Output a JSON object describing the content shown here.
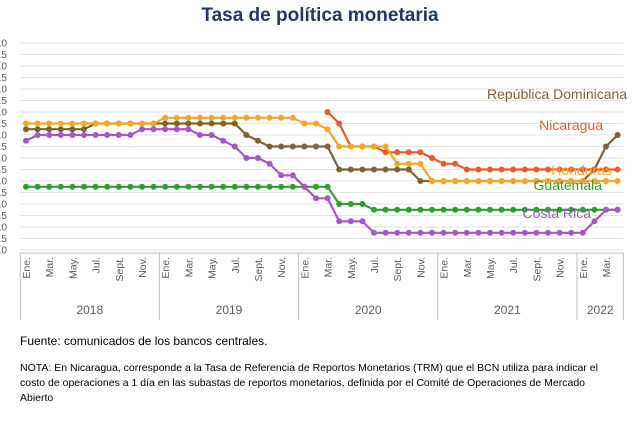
{
  "chart_data": {
    "type": "line",
    "title": "Tasa de política monetaria",
    "xlabel": "",
    "ylabel": "",
    "ylim": [
      0,
      9
    ],
    "y_tick_step": 0.5,
    "grid": "horizontal",
    "month_labels": [
      "Ene.",
      "Mar.",
      "May.",
      "Jul.",
      "Sept.",
      "Nov."
    ],
    "years": [
      "2018",
      "2019",
      "2020",
      "2021",
      "2022"
    ],
    "x_start": "2018-01",
    "x_end": "2022-02",
    "series": [
      {
        "name": "República Dominicana",
        "color": "#7f6136",
        "values": [
          5.25,
          5.25,
          5.25,
          5.25,
          5.25,
          5.25,
          5.5,
          5.5,
          5.5,
          5.5,
          5.5,
          5.5,
          5.5,
          5.5,
          5.5,
          5.5,
          5.5,
          5.5,
          5.5,
          5.0,
          4.75,
          4.5,
          4.5,
          4.5,
          4.5,
          4.5,
          4.5,
          3.5,
          3.5,
          3.5,
          3.5,
          3.5,
          3.5,
          3.5,
          3.0,
          3.0,
          3.0,
          3.0,
          3.0,
          3.0,
          3.0,
          3.0,
          3.0,
          3.0,
          3.0,
          3.0,
          3.0,
          3.0,
          3.0,
          3.5,
          4.5,
          5.0
        ]
      },
      {
        "name": "Nicaragua",
        "color": "#e8592b",
        "values": [
          null,
          null,
          null,
          null,
          null,
          null,
          null,
          null,
          null,
          null,
          null,
          null,
          null,
          null,
          null,
          null,
          null,
          null,
          null,
          null,
          null,
          null,
          null,
          null,
          null,
          null,
          6.0,
          5.5,
          4.5,
          4.5,
          4.5,
          4.25,
          4.25,
          4.25,
          4.25,
          4.0,
          3.75,
          3.75,
          3.5,
          3.5,
          3.5,
          3.5,
          3.5,
          3.5,
          3.5,
          3.5,
          3.5,
          3.5,
          3.5,
          3.5,
          3.5,
          3.5
        ]
      },
      {
        "name": "Honduras",
        "color": "#f5a623",
        "values": [
          5.5,
          5.5,
          5.5,
          5.5,
          5.5,
          5.5,
          5.5,
          5.5,
          5.5,
          5.5,
          5.5,
          5.5,
          5.75,
          5.75,
          5.75,
          5.75,
          5.75,
          5.75,
          5.75,
          5.75,
          5.75,
          5.75,
          5.75,
          5.75,
          5.5,
          5.5,
          5.25,
          4.5,
          4.5,
          4.5,
          4.5,
          4.5,
          3.75,
          3.75,
          3.75,
          3.0,
          3.0,
          3.0,
          3.0,
          3.0,
          3.0,
          3.0,
          3.0,
          3.0,
          3.0,
          3.0,
          3.0,
          3.0,
          3.0,
          3.0,
          3.0,
          3.0
        ]
      },
      {
        "name": "Guatemala",
        "color": "#2ca02c",
        "values": [
          2.75,
          2.75,
          2.75,
          2.75,
          2.75,
          2.75,
          2.75,
          2.75,
          2.75,
          2.75,
          2.75,
          2.75,
          2.75,
          2.75,
          2.75,
          2.75,
          2.75,
          2.75,
          2.75,
          2.75,
          2.75,
          2.75,
          2.75,
          2.75,
          2.75,
          2.75,
          2.75,
          2.0,
          2.0,
          2.0,
          1.75,
          1.75,
          1.75,
          1.75,
          1.75,
          1.75,
          1.75,
          1.75,
          1.75,
          1.75,
          1.75,
          1.75,
          1.75,
          1.75,
          1.75,
          1.75,
          1.75,
          1.75,
          1.75,
          1.75,
          1.75,
          1.75
        ]
      },
      {
        "name": "Costa Rica",
        "color": "#a855c8",
        "values": [
          4.75,
          5.0,
          5.0,
          5.0,
          5.0,
          5.0,
          5.0,
          5.0,
          5.0,
          5.0,
          5.25,
          5.25,
          5.25,
          5.25,
          5.25,
          5.0,
          5.0,
          4.75,
          4.5,
          4.0,
          4.0,
          3.75,
          3.25,
          3.25,
          2.75,
          2.25,
          2.25,
          1.25,
          1.25,
          1.25,
          0.75,
          0.75,
          0.75,
          0.75,
          0.75,
          0.75,
          0.75,
          0.75,
          0.75,
          0.75,
          0.75,
          0.75,
          0.75,
          0.75,
          0.75,
          0.75,
          0.75,
          0.75,
          0.75,
          1.25,
          1.75,
          1.75
        ]
      }
    ]
  },
  "footer": {
    "source": "Fuente: comunicados de los bancos centrales.",
    "note": "NOTA: En Nicaragua, corresponde a la Tasa de Referencia de Reportos Monetarios (TRM) que el BCN utiliza para indicar el costo de operaciones a 1 día en las subastas de reportos monetarios, definida por el Comité de Operaciones de Mercado Abierto"
  }
}
